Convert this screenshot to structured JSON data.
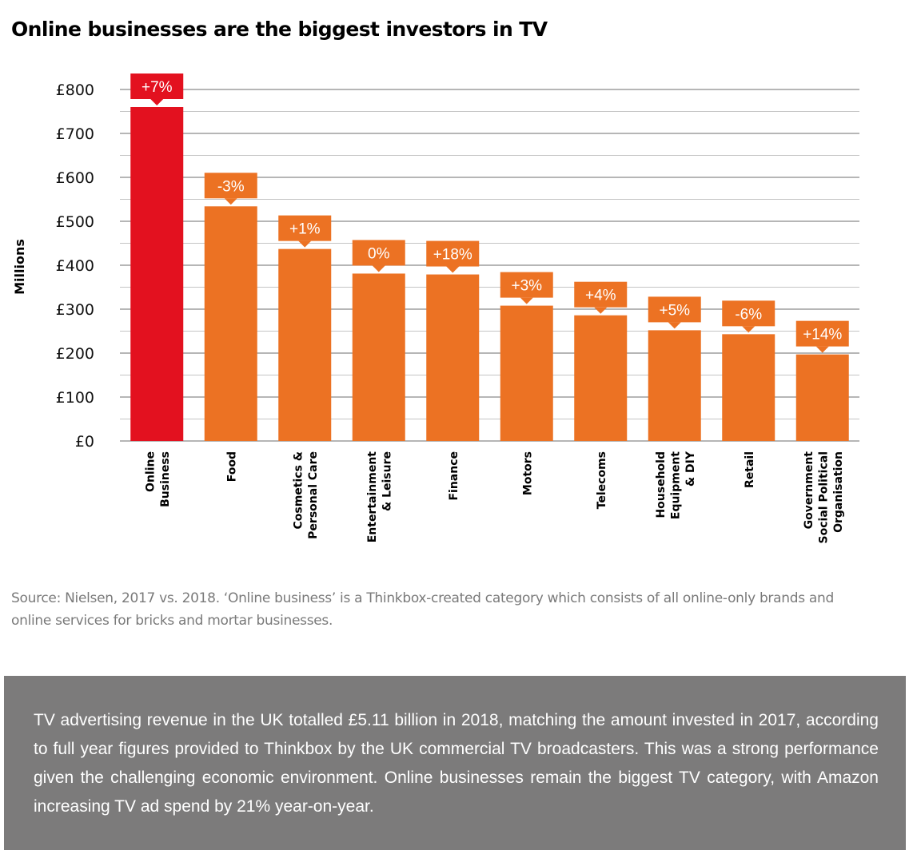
{
  "title": "Online businesses are the biggest investors in TV",
  "source_note": "Source: Nielsen, 2017 vs. 2018. ‘Online business’ is a Thinkbox-created category which consists of all online-only brands and online services for bricks and mortar businesses.",
  "summary_text": "TV advertising revenue in the UK totalled £5.11 billion in 2018, matching the amount invested in 2017, according to full year figures provided to Thinkbox by the UK commercial TV broadcasters. This was a strong performance given the challenging economic environment. Online businesses remain the biggest TV category, with Amazon increasing TV ad spend by 21% year-on-year.",
  "colors": {
    "highlight": "#e3111f",
    "bar": "#ec7223",
    "grid": "#8a8a8a",
    "panel": "#7c7b7b"
  },
  "chart_data": {
    "type": "bar",
    "ylabel": "Millions",
    "ylim": [
      0,
      800
    ],
    "yticks": [
      "£0",
      "£100",
      "£200",
      "£300",
      "£400",
      "£500",
      "£600",
      "£700",
      "£800"
    ],
    "grid": true,
    "categories": [
      [
        "Online",
        "Business"
      ],
      [
        "Food"
      ],
      [
        "Cosmetics &",
        "Personal Care"
      ],
      [
        "Entertainment",
        "& Leisure"
      ],
      [
        "Finance"
      ],
      [
        "Motors"
      ],
      [
        "Telecoms"
      ],
      [
        "Household",
        "Equipment",
        "& DIY"
      ],
      [
        "Retail"
      ],
      [
        "Government",
        "Social Political",
        "Organisation"
      ]
    ],
    "values": [
      760,
      534,
      437,
      381,
      379,
      308,
      286,
      252,
      243,
      197
    ],
    "change_labels": [
      "+7%",
      "-3%",
      "+1%",
      "0%",
      "+18%",
      "+3%",
      "+4%",
      "+5%",
      "-6%",
      "+14%"
    ],
    "highlight_index": 0
  }
}
